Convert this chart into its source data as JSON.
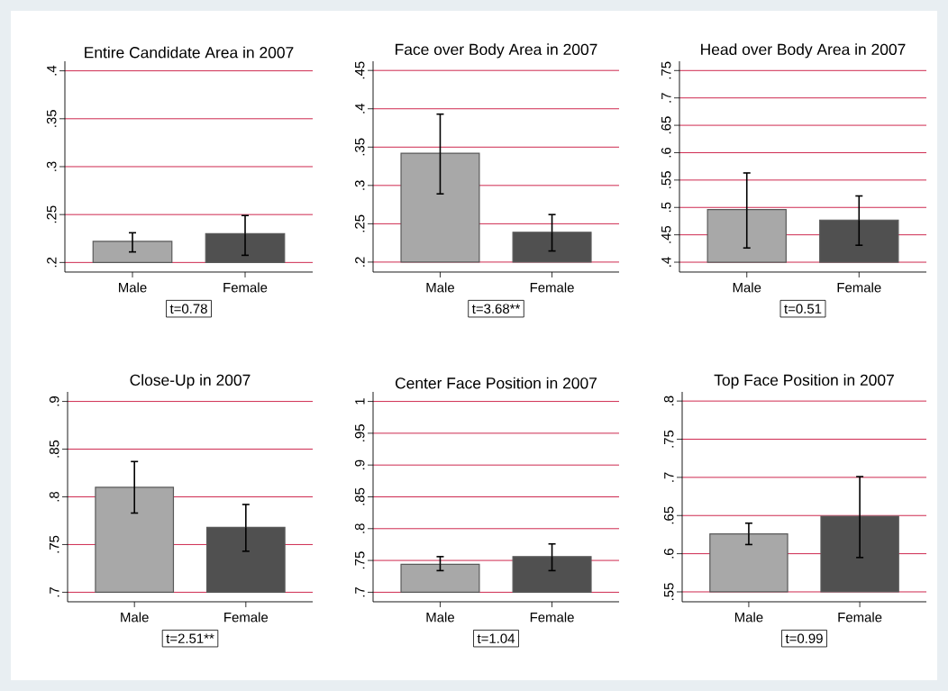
{
  "chart_data": [
    {
      "type": "bar",
      "title": "Entire Candidate Area in 2007",
      "categories": [
        "Male",
        "Female"
      ],
      "values": [
        0.022,
        0.03
      ],
      "base": [
        0.2,
        0.2
      ],
      "colors": [
        "#a8a8a8",
        "#505050"
      ],
      "errors": [
        [
          0.211,
          0.231
        ],
        [
          0.2075,
          0.249
        ]
      ],
      "ylim": [
        0.19,
        0.41
      ],
      "yticks": [
        {
          "value": 0.2,
          "label": ".2"
        },
        {
          "value": 0.25,
          "label": ".25"
        },
        {
          "value": 0.3,
          "label": ".3"
        },
        {
          "value": 0.35,
          "label": ".35"
        },
        {
          "value": 0.4,
          "label": ".4"
        }
      ],
      "grid": "y",
      "annotations": [
        "t=0.78"
      ]
    },
    {
      "type": "bar",
      "title": "Face over Body Area in 2007",
      "categories": [
        "Male",
        "Female"
      ],
      "values": [
        0.142,
        0.039
      ],
      "base": [
        0.2,
        0.2
      ],
      "colors": [
        "#a8a8a8",
        "#505050"
      ],
      "errors": [
        [
          0.289,
          0.393
        ],
        [
          0.2145,
          0.262
        ]
      ],
      "ylim": [
        0.187,
        0.462
      ],
      "yticks": [
        {
          "value": 0.2,
          "label": ".2"
        },
        {
          "value": 0.25,
          "label": ".25"
        },
        {
          "value": 0.3,
          "label": ".3"
        },
        {
          "value": 0.35,
          "label": ".35"
        },
        {
          "value": 0.4,
          "label": ".4"
        },
        {
          "value": 0.45,
          "label": ".45"
        }
      ],
      "grid": "y",
      "annotations": [
        "t=3.68**"
      ]
    },
    {
      "type": "bar",
      "title": "Head over Body Area in 2007",
      "categories": [
        "Male",
        "Female"
      ],
      "values": [
        0.096,
        0.077
      ],
      "base": [
        0.4,
        0.4
      ],
      "colors": [
        "#a8a8a8",
        "#505050"
      ],
      "errors": [
        [
          0.426,
          0.563
        ],
        [
          0.431,
          0.521
        ]
      ],
      "ylim": [
        0.382,
        0.767
      ],
      "yticks": [
        {
          "value": 0.4,
          "label": ".4"
        },
        {
          "value": 0.45,
          "label": ".45"
        },
        {
          "value": 0.5,
          "label": ".5"
        },
        {
          "value": 0.55,
          "label": ".55"
        },
        {
          "value": 0.6,
          "label": ".6"
        },
        {
          "value": 0.65,
          "label": ".65"
        },
        {
          "value": 0.7,
          "label": ".7"
        },
        {
          "value": 0.75,
          "label": ".75"
        }
      ],
      "grid": "y",
      "annotations": [
        "t=0.51"
      ]
    },
    {
      "type": "bar",
      "title": "Close-Up in 2007",
      "categories": [
        "Male",
        "Female"
      ],
      "values": [
        0.11,
        0.068
      ],
      "base": [
        0.7,
        0.7
      ],
      "colors": [
        "#a8a8a8",
        "#505050"
      ],
      "errors": [
        [
          0.783,
          0.837
        ],
        [
          0.743,
          0.792
        ]
      ],
      "ylim": [
        0.69,
        0.91
      ],
      "yticks": [
        {
          "value": 0.7,
          "label": ".7"
        },
        {
          "value": 0.75,
          "label": ".75"
        },
        {
          "value": 0.8,
          "label": ".8"
        },
        {
          "value": 0.85,
          "label": ".85"
        },
        {
          "value": 0.9,
          "label": ".9"
        }
      ],
      "grid": "y",
      "annotations": [
        "t=2.51**"
      ]
    },
    {
      "type": "bar",
      "title": "Center Face Position in 2007",
      "categories": [
        "Male",
        "Female"
      ],
      "values": [
        0.044,
        0.056
      ],
      "base": [
        0.7,
        0.7
      ],
      "colors": [
        "#a8a8a8",
        "#505050"
      ],
      "errors": [
        [
          0.734,
          0.756
        ],
        [
          0.734,
          0.776
        ]
      ],
      "ylim": [
        0.685,
        1.015
      ],
      "yticks": [
        {
          "value": 0.7,
          "label": ".7"
        },
        {
          "value": 0.75,
          "label": ".75"
        },
        {
          "value": 0.8,
          "label": ".8"
        },
        {
          "value": 0.85,
          "label": ".85"
        },
        {
          "value": 0.9,
          "label": ".9"
        },
        {
          "value": 0.95,
          "label": ".95"
        },
        1
      ],
      "grid": "y",
      "annotations": [
        "t=1.04"
      ]
    },
    {
      "type": "bar",
      "title": "Top Face Position in 2007",
      "categories": [
        "Male",
        "Female"
      ],
      "values": [
        0.076,
        0.099
      ],
      "base": [
        0.55,
        0.55
      ],
      "colors": [
        "#a8a8a8",
        "#505050"
      ],
      "errors": [
        [
          0.612,
          0.64
        ],
        [
          0.595,
          0.701
        ]
      ],
      "ylim": [
        0.537,
        0.812
      ],
      "yticks": [
        {
          "value": 0.55,
          "label": ".55"
        },
        {
          "value": 0.6,
          "label": ".6"
        },
        {
          "value": 0.65,
          "label": ".65"
        },
        {
          "value": 0.7,
          "label": ".7"
        },
        {
          "value": 0.75,
          "label": ".75"
        },
        {
          "value": 0.8,
          "label": ".8"
        }
      ],
      "grid": "y",
      "annotations": [
        "t=0.99"
      ]
    }
  ]
}
